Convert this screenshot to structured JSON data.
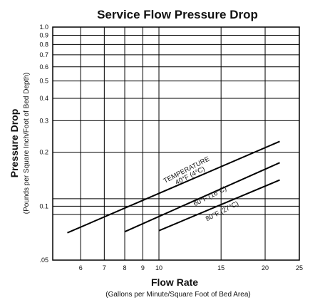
{
  "chart_data": {
    "type": "line",
    "title": "Service Flow Pressure Drop",
    "xlabel": "Flow Rate",
    "xlabel_sub": "(Gallons per Minute/Square Foot of Bed Area)",
    "ylabel": "Pressure Drop",
    "ylabel_sub": "(Pounds per Square Inch/Foot of Bed Depth)",
    "x_scale": "log",
    "y_scale": "log",
    "xlim": [
      5,
      25
    ],
    "ylim": [
      0.05,
      1.0
    ],
    "grid": true,
    "x_ticks": [
      {
        "value": 6,
        "label": "6"
      },
      {
        "value": 7,
        "label": "7"
      },
      {
        "value": 8,
        "label": "8"
      },
      {
        "value": 9,
        "label": "9"
      },
      {
        "value": 10,
        "label": "10"
      },
      {
        "value": 15,
        "label": "15"
      },
      {
        "value": 20,
        "label": "20"
      },
      {
        "value": 25,
        "label": "25"
      }
    ],
    "y_ticks": [
      {
        "value": 1.0,
        "label": "1.0"
      },
      {
        "value": 0.9,
        "label": "0.9"
      },
      {
        "value": 0.8,
        "label": "0.8"
      },
      {
        "value": 0.7,
        "label": "0.7"
      },
      {
        "value": 0.6,
        "label": "0.6"
      },
      {
        "value": 0.5,
        "label": "0.5"
      },
      {
        "value": 0.4,
        "label": "0.4"
      },
      {
        "value": 0.3,
        "label": "0.3"
      },
      {
        "value": 0.2,
        "label": "0.2"
      },
      {
        "value": 0.1,
        "label": "0.1"
      },
      {
        "value": 0.05,
        "label": ".05"
      }
    ],
    "y_extra_gridlines": [
      0.11,
      0.09
    ],
    "series_header": "TEMPERATURE",
    "series": [
      {
        "name": "40°F (4°C)",
        "x": [
          5.5,
          22
        ],
        "y": [
          0.071,
          0.23
        ]
      },
      {
        "name": "60°F (16°C)",
        "x": [
          8,
          22
        ],
        "y": [
          0.072,
          0.175
        ]
      },
      {
        "name": "80°F (27°C)",
        "x": [
          10,
          22
        ],
        "y": [
          0.073,
          0.14
        ]
      }
    ]
  }
}
